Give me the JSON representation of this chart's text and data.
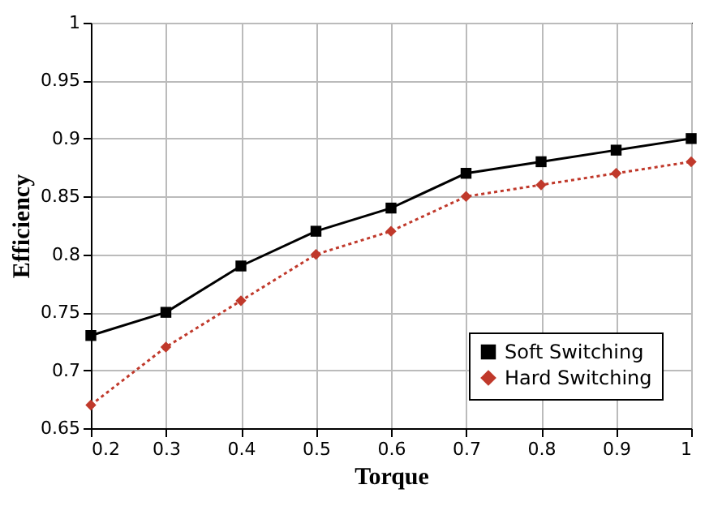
{
  "chart_data": {
    "type": "line",
    "xlabel": "Torque",
    "ylabel": "Efficiency",
    "x": [
      0.2,
      0.3,
      0.4,
      0.5,
      0.6,
      0.7,
      0.8,
      0.9,
      1.0
    ],
    "series": [
      {
        "name": "Soft Switching",
        "color": "#000000",
        "marker": "square",
        "line_style": "solid",
        "values": [
          0.73,
          0.75,
          0.79,
          0.82,
          0.84,
          0.87,
          0.88,
          0.89,
          0.9
        ]
      },
      {
        "name": "Hard Switching",
        "color": "#c0392b",
        "marker": "diamond",
        "line_style": "dotted",
        "values": [
          0.67,
          0.72,
          0.76,
          0.8,
          0.82,
          0.85,
          0.86,
          0.87,
          0.88
        ]
      }
    ],
    "xlim": [
      0.2,
      1.0
    ],
    "xticks": [
      0.2,
      0.3,
      0.4,
      0.5,
      0.6,
      0.7,
      0.8,
      0.9,
      1
    ],
    "ylim": [
      0.65,
      1.0
    ],
    "yticks": [
      0.65,
      0.7,
      0.75,
      0.8,
      0.85,
      0.9,
      0.95,
      1
    ],
    "grid": true,
    "legend": "bottom right"
  }
}
